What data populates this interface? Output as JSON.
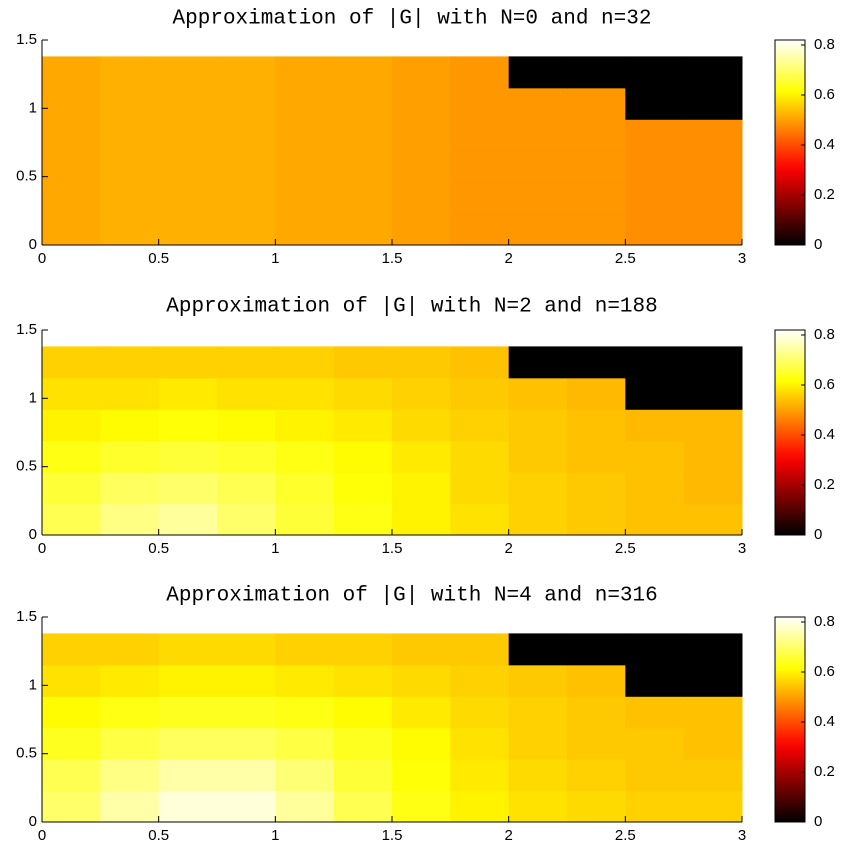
{
  "chart_data": [
    {
      "type": "heatmap",
      "title": "Approximation of |G| with N=0 and n=32",
      "colormap": "hot",
      "xbins": [
        0,
        0.25,
        0.5,
        0.75,
        1,
        1.25,
        1.5,
        1.75,
        2,
        2.25,
        2.5,
        2.75,
        3
      ],
      "ybins": [
        0,
        0.23,
        0.46,
        0.69,
        0.92,
        1.15,
        1.38
      ],
      "values": [
        [
          0.51,
          0.52,
          0.52,
          0.52,
          0.51,
          0.51,
          0.5,
          0.49,
          0.49,
          0.49,
          0.48,
          0.48
        ],
        [
          0.51,
          0.52,
          0.52,
          0.52,
          0.51,
          0.51,
          0.5,
          0.49,
          0.49,
          0.49,
          0.48,
          0.48
        ],
        [
          0.51,
          0.52,
          0.52,
          0.52,
          0.51,
          0.51,
          0.5,
          0.49,
          0.49,
          0.49,
          0.48,
          0.48
        ],
        [
          0.51,
          0.52,
          0.52,
          0.52,
          0.51,
          0.51,
          0.5,
          0.49,
          0.49,
          0.49,
          0.48,
          0.48
        ],
        [
          0.51,
          0.52,
          0.52,
          0.52,
          0.51,
          0.51,
          0.5,
          0.49,
          0.49,
          0.49,
          0,
          0
        ],
        [
          0.51,
          0.52,
          0.52,
          0.52,
          0.51,
          0.51,
          0.5,
          0.49,
          0,
          0,
          0,
          0
        ]
      ],
      "xlim": [
        0,
        3
      ],
      "xticks": [
        0,
        0.5,
        1,
        1.5,
        2,
        2.5,
        3
      ],
      "ylim": [
        0,
        1.5
      ],
      "yticks": [
        0,
        0.5,
        1,
        1.5
      ],
      "zlim": [
        0,
        0.82
      ],
      "zticks": [
        0,
        0.2,
        0.4,
        0.6,
        0.8
      ]
    },
    {
      "type": "heatmap",
      "title": "Approximation of |G| with N=2 and n=188",
      "colormap": "hot",
      "xbins": [
        0,
        0.25,
        0.5,
        0.75,
        1,
        1.25,
        1.5,
        1.75,
        2,
        2.25,
        2.5,
        2.75,
        3
      ],
      "ybins": [
        0,
        0.23,
        0.46,
        0.69,
        0.92,
        1.15,
        1.38
      ],
      "values": [
        [
          0.68,
          0.72,
          0.74,
          0.7,
          0.66,
          0.63,
          0.6,
          0.58,
          0.56,
          0.55,
          0.54,
          0.54
        ],
        [
          0.66,
          0.69,
          0.7,
          0.68,
          0.65,
          0.62,
          0.6,
          0.57,
          0.56,
          0.55,
          0.54,
          0.53
        ],
        [
          0.63,
          0.65,
          0.66,
          0.65,
          0.63,
          0.61,
          0.59,
          0.57,
          0.55,
          0.54,
          0.54,
          0.53
        ],
        [
          0.6,
          0.61,
          0.62,
          0.61,
          0.6,
          0.59,
          0.57,
          0.56,
          0.55,
          0.54,
          0.53,
          0.53
        ],
        [
          0.58,
          0.58,
          0.59,
          0.58,
          0.58,
          0.57,
          0.56,
          0.55,
          0.54,
          0.53,
          0,
          0
        ],
        [
          0.56,
          0.56,
          0.56,
          0.56,
          0.56,
          0.55,
          0.55,
          0.54,
          0,
          0,
          0,
          0
        ]
      ],
      "xlim": [
        0,
        3
      ],
      "xticks": [
        0,
        0.5,
        1,
        1.5,
        2,
        2.5,
        3
      ],
      "ylim": [
        0,
        1.5
      ],
      "yticks": [
        0,
        0.5,
        1,
        1.5
      ],
      "zlim": [
        0,
        0.82
      ],
      "zticks": [
        0,
        0.2,
        0.4,
        0.6,
        0.8
      ]
    },
    {
      "type": "heatmap",
      "title": "Approximation of |G| with N=4 and n=316",
      "colormap": "hot",
      "xbins": [
        0,
        0.25,
        0.5,
        0.75,
        1,
        1.25,
        1.5,
        1.75,
        2,
        2.25,
        2.5,
        2.75,
        3
      ],
      "ybins": [
        0,
        0.23,
        0.46,
        0.69,
        0.92,
        1.15,
        1.38
      ],
      "values": [
        [
          0.7,
          0.75,
          0.79,
          0.79,
          0.74,
          0.68,
          0.63,
          0.6,
          0.58,
          0.57,
          0.56,
          0.56
        ],
        [
          0.68,
          0.72,
          0.75,
          0.75,
          0.71,
          0.66,
          0.62,
          0.59,
          0.57,
          0.56,
          0.55,
          0.55
        ],
        [
          0.64,
          0.67,
          0.69,
          0.69,
          0.67,
          0.64,
          0.61,
          0.58,
          0.56,
          0.55,
          0.55,
          0.54
        ],
        [
          0.61,
          0.63,
          0.64,
          0.64,
          0.63,
          0.61,
          0.59,
          0.57,
          0.56,
          0.55,
          0.54,
          0.54
        ],
        [
          0.58,
          0.59,
          0.6,
          0.6,
          0.59,
          0.58,
          0.57,
          0.56,
          0.55,
          0.54,
          0,
          0
        ],
        [
          0.56,
          0.56,
          0.57,
          0.57,
          0.56,
          0.56,
          0.55,
          0.55,
          0,
          0,
          0,
          0
        ]
      ],
      "xlim": [
        0,
        3
      ],
      "xticks": [
        0,
        0.5,
        1,
        1.5,
        2,
        2.5,
        3
      ],
      "ylim": [
        0,
        1.5
      ],
      "yticks": [
        0,
        0.5,
        1,
        1.5
      ],
      "zlim": [
        0,
        0.82
      ],
      "zticks": [
        0,
        0.2,
        0.4,
        0.6,
        0.8
      ]
    }
  ]
}
